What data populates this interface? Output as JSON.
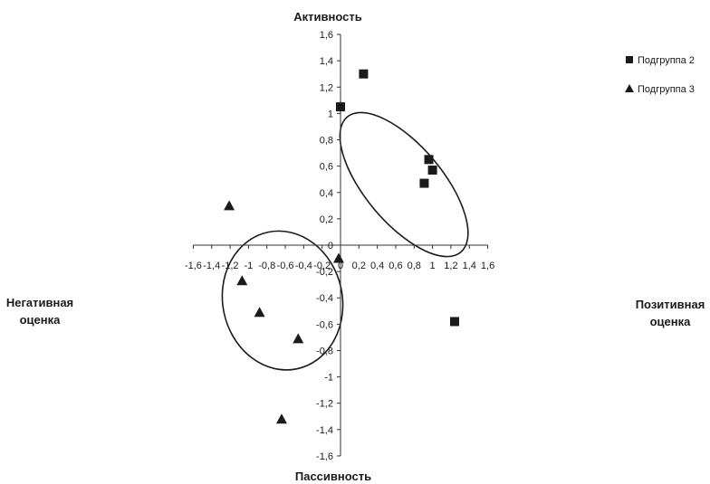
{
  "chart_data": {
    "type": "scatter",
    "title": "",
    "xlim": [
      -1.6,
      1.6
    ],
    "ylim": [
      -1.6,
      1.6
    ],
    "x_ticks": [
      "-1,6",
      "-1,4",
      "-1,2",
      "-1",
      "-0,8",
      "-0,6",
      "-0,4",
      "-0,2",
      "0",
      "0,2",
      "0,4",
      "0,6",
      "0,8",
      "1",
      "1,2",
      "1,4",
      "1,6"
    ],
    "y_ticks": [
      "1,6",
      "1,4",
      "1,2",
      "1",
      "0,8",
      "0,6",
      "0,4",
      "0,2",
      "0",
      "-0,2",
      "-0,4",
      "-0,6",
      "-0,8",
      "-1",
      "-1,2",
      "-1,4",
      "-1,6"
    ],
    "axis_poles": {
      "top": "Активность",
      "bottom": "Пассивность",
      "left": [
        "Негативная",
        "оценка"
      ],
      "right": [
        "Позитивная",
        "оценка"
      ]
    },
    "legend_position": "top-right",
    "series": [
      {
        "name": "Подгруппа 2",
        "marker": "square",
        "points": [
          {
            "x": 0.0,
            "y": 1.05
          },
          {
            "x": 0.25,
            "y": 1.3
          },
          {
            "x": 0.91,
            "y": 0.47
          },
          {
            "x": 0.96,
            "y": 0.65
          },
          {
            "x": 1.0,
            "y": 0.57
          },
          {
            "x": 1.24,
            "y": -0.58
          }
        ]
      },
      {
        "name": "Подгруппа 3",
        "marker": "triangle",
        "points": [
          {
            "x": -1.21,
            "y": 0.3
          },
          {
            "x": -1.07,
            "y": -0.27
          },
          {
            "x": -0.88,
            "y": -0.51
          },
          {
            "x": -0.64,
            "y": -1.32
          },
          {
            "x": -0.46,
            "y": -0.71
          },
          {
            "x": -0.02,
            "y": -0.1
          }
        ]
      }
    ],
    "ellipses": [
      {
        "group": "Подгруппа 2",
        "center": [
          0.69,
          0.46
        ],
        "rx": 0.96,
        "ry": 0.42,
        "angle": 50
      },
      {
        "group": "Подгруппа 3",
        "center": [
          -0.63,
          -0.42
        ],
        "rx": 0.76,
        "ry": 0.65,
        "angle": 78
      }
    ]
  }
}
